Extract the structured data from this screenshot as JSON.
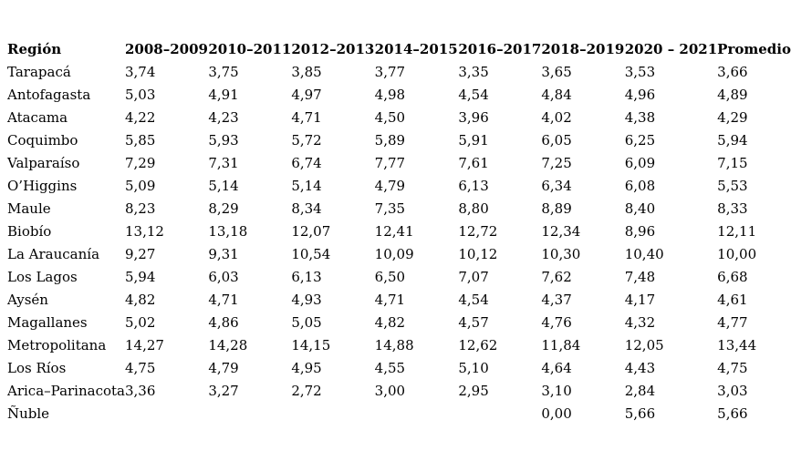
{
  "colors": {
    "text": "#000000",
    "background": "#ffffff"
  },
  "table": {
    "columns": [
      "Región",
      "2008–2009",
      "2010–2011",
      "2012–2013",
      "2014–2015",
      "2016–2017",
      "2018–2019",
      "2020 – 2021",
      "Promedio"
    ],
    "rows": [
      {
        "region": "Tarapacá",
        "values": [
          "3,74",
          "3,75",
          "3,85",
          "3,77",
          "3,35",
          "3,65",
          "3,53",
          "3,66"
        ]
      },
      {
        "region": "Antofagasta",
        "values": [
          "5,03",
          "4,91",
          "4,97",
          "4,98",
          "4,54",
          "4,84",
          "4,96",
          "4,89"
        ]
      },
      {
        "region": "Atacama",
        "values": [
          "4,22",
          "4,23",
          "4,71",
          "4,50",
          "3,96",
          "4,02",
          "4,38",
          "4,29"
        ]
      },
      {
        "region": "Coquimbo",
        "values": [
          "5,85",
          "5,93",
          "5,72",
          "5,89",
          "5,91",
          "6,05",
          "6,25",
          "5,94"
        ]
      },
      {
        "region": "Valparaíso",
        "values": [
          "7,29",
          "7,31",
          "6,74",
          "7,77",
          "7,61",
          "7,25",
          "6,09",
          "7,15"
        ]
      },
      {
        "region": "O’Higgins",
        "values": [
          "5,09",
          "5,14",
          "5,14",
          "4,79",
          "6,13",
          "6,34",
          "6,08",
          "5,53"
        ]
      },
      {
        "region": "Maule",
        "values": [
          "8,23",
          "8,29",
          "8,34",
          "7,35",
          "8,80",
          "8,89",
          "8,40",
          "8,33"
        ]
      },
      {
        "region": "Biobío",
        "values": [
          "13,12",
          "13,18",
          "12,07",
          "12,41",
          "12,72",
          "12,34",
          "8,96",
          "12,11"
        ]
      },
      {
        "region": "La Araucanía",
        "values": [
          "9,27",
          "9,31",
          "10,54",
          "10,09",
          "10,12",
          "10,30",
          "10,40",
          "10,00"
        ]
      },
      {
        "region": "Los Lagos",
        "values": [
          "5,94",
          "6,03",
          "6,13",
          "6,50",
          "7,07",
          "7,62",
          "7,48",
          "6,68"
        ]
      },
      {
        "region": "Aysén",
        "values": [
          "4,82",
          "4,71",
          "4,93",
          "4,71",
          "4,54",
          "4,37",
          "4,17",
          "4,61"
        ]
      },
      {
        "region": "Magallanes",
        "values": [
          "5,02",
          "4,86",
          "5,05",
          "4,82",
          "4,57",
          "4,76",
          "4,32",
          "4,77"
        ]
      },
      {
        "region": "Metropolitana",
        "values": [
          "14,27",
          "14,28",
          "14,15",
          "14,88",
          "12,62",
          "11,84",
          "12,05",
          "13,44"
        ]
      },
      {
        "region": "Los Ríos",
        "values": [
          "4,75",
          "4,79",
          "4,95",
          "4,55",
          "5,10",
          "4,64",
          "4,43",
          "4,75"
        ]
      },
      {
        "region": "Arica–Parinacota",
        "values": [
          "3,36",
          "3,27",
          "2,72",
          "3,00",
          "2,95",
          "3,10",
          "2,84",
          "3,03"
        ]
      },
      {
        "region": "Ñuble",
        "values": [
          "",
          "",
          "",
          "",
          "",
          "0,00",
          "5,66",
          "5,66"
        ]
      }
    ]
  }
}
